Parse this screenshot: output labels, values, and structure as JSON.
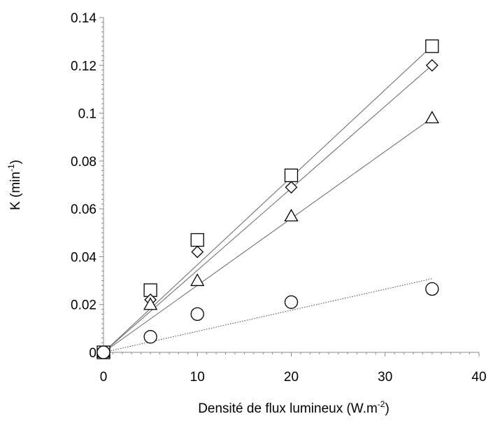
{
  "chart_data": {
    "type": "scatter",
    "xlabel": {
      "main": "Densité de flux lumineux (W.m",
      "sup": "-2",
      "end": ")"
    },
    "ylabel": {
      "main": "K (min",
      "sup": "-1",
      "end": ")"
    },
    "xlim": [
      0,
      40
    ],
    "ylim": [
      0,
      0.14
    ],
    "x_ticks": [
      0,
      10,
      20,
      30,
      40
    ],
    "x_tick_labels": [
      "0",
      "10",
      "20",
      "30",
      "40"
    ],
    "y_ticks": [
      0,
      0.02,
      0.04,
      0.06,
      0.08,
      0.1,
      0.12,
      0.14
    ],
    "y_tick_labels": [
      "0",
      "0.02",
      "0.04",
      "0.06",
      "0.08",
      "0.1",
      "0.12",
      "0.14"
    ],
    "grid": false,
    "legend": "none",
    "series": [
      {
        "marker": "square",
        "x": [
          0,
          5,
          10,
          20,
          35
        ],
        "y": [
          0,
          0.026,
          0.047,
          0.074,
          0.128
        ],
        "trendline": {
          "style": "solid",
          "slope": 0.00366,
          "x_range": [
            0,
            35
          ]
        }
      },
      {
        "marker": "diamond",
        "x": [
          0,
          5,
          10,
          20,
          35
        ],
        "y": [
          0,
          0.022,
          0.042,
          0.069,
          0.12
        ],
        "trendline": {
          "style": "solid",
          "slope": 0.00343,
          "x_range": [
            0,
            35
          ]
        }
      },
      {
        "marker": "triangle",
        "x": [
          0,
          5,
          10,
          20,
          35
        ],
        "y": [
          0,
          0.02,
          0.03,
          0.057,
          0.098
        ],
        "trendline": {
          "style": "solid",
          "slope": 0.0028,
          "x_range": [
            0,
            35
          ]
        }
      },
      {
        "marker": "circle",
        "x": [
          0,
          5,
          10,
          20,
          35
        ],
        "y": [
          0,
          0.0065,
          0.016,
          0.021,
          0.0265
        ],
        "trendline": {
          "style": "dotted",
          "slope": 0.00088,
          "x_range": [
            0,
            35
          ]
        }
      }
    ]
  }
}
